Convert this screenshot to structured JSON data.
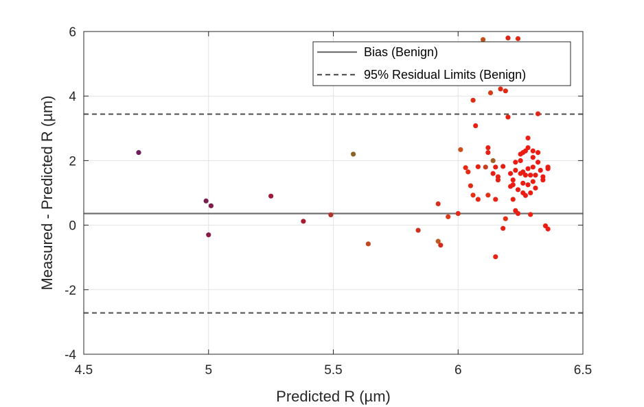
{
  "chart_data": {
    "type": "scatter",
    "title": "",
    "xlabel": "Predicted R (µm)",
    "ylabel": "Measured - Predicted R (µm)",
    "xlim": [
      4.5,
      6.5
    ],
    "ylim": [
      -4,
      6
    ],
    "xticks": [
      4.5,
      5,
      5.5,
      6,
      6.5
    ],
    "yticks": [
      -4,
      -2,
      0,
      2,
      4,
      6
    ],
    "xtick_labels": [
      "4.5",
      "5",
      "5.5",
      "6",
      "6.5"
    ],
    "ytick_labels": [
      "-4",
      "-2",
      "0",
      "2",
      "4",
      "6"
    ],
    "grid": true,
    "legend_position": "top-right",
    "colors": {
      "bias_line": "#707070",
      "limit_line": "#555555",
      "grid": "#e3e3e3",
      "axis": "#262626"
    },
    "lines": [
      {
        "name": "Bias (Benign)",
        "y": 0.36,
        "style": "solid"
      },
      {
        "name": "95% Residual Limits (Benign)",
        "y": [
          3.44,
          -2.72
        ],
        "style": "dashed"
      }
    ],
    "points": [
      {
        "x": 4.72,
        "y": 2.25,
        "color": "#6b1e5c"
      },
      {
        "x": 4.99,
        "y": 0.75,
        "color": "#7a1e50"
      },
      {
        "x": 5.01,
        "y": 0.6,
        "color": "#7f1e4c"
      },
      {
        "x": 5.0,
        "y": -0.3,
        "color": "#841d48"
      },
      {
        "x": 5.25,
        "y": 0.9,
        "color": "#a01a3a"
      },
      {
        "x": 5.38,
        "y": 0.12,
        "color": "#a81a30"
      },
      {
        "x": 5.49,
        "y": 0.32,
        "color": "#b2352a"
      },
      {
        "x": 5.58,
        "y": 2.2,
        "color": "#8a6424"
      },
      {
        "x": 5.64,
        "y": -0.58,
        "color": "#c04a20"
      },
      {
        "x": 5.84,
        "y": -0.16,
        "color": "#d03020"
      },
      {
        "x": 5.92,
        "y": 0.66,
        "color": "#d82d1c"
      },
      {
        "x": 5.92,
        "y": -0.5,
        "color": "#b85a22"
      },
      {
        "x": 5.93,
        "y": -0.62,
        "color": "#d42a1c"
      },
      {
        "x": 5.96,
        "y": 0.26,
        "color": "#dc3a18"
      },
      {
        "x": 6.0,
        "y": 0.36,
        "color": "#e02a18"
      },
      {
        "x": 6.01,
        "y": 2.34,
        "color": "#c8501c"
      },
      {
        "x": 6.03,
        "y": 1.78,
        "color": "#e82814"
      },
      {
        "x": 6.04,
        "y": 1.65,
        "color": "#e62814"
      },
      {
        "x": 6.05,
        "y": 1.22,
        "color": "#e02c14"
      },
      {
        "x": 6.06,
        "y": 3.87,
        "color": "#e02a14"
      },
      {
        "x": 6.06,
        "y": 0.93,
        "color": "#e43014"
      },
      {
        "x": 6.07,
        "y": 3.08,
        "color": "#e82214"
      },
      {
        "x": 6.08,
        "y": 0.8,
        "color": "#e82414"
      },
      {
        "x": 6.08,
        "y": 1.81,
        "color": "#e42214"
      },
      {
        "x": 6.1,
        "y": 5.75,
        "color": "#c0501c"
      },
      {
        "x": 6.11,
        "y": 1.8,
        "color": "#c8401c"
      },
      {
        "x": 6.12,
        "y": 2.4,
        "color": "#e42014"
      },
      {
        "x": 6.12,
        "y": 2.25,
        "color": "#e62014"
      },
      {
        "x": 6.12,
        "y": 0.93,
        "color": "#e43014"
      },
      {
        "x": 6.13,
        "y": 4.1,
        "color": "#d63e18"
      },
      {
        "x": 6.14,
        "y": 1.6,
        "color": "#e82014"
      },
      {
        "x": 6.14,
        "y": 2.0,
        "color": "#a06024"
      },
      {
        "x": 6.15,
        "y": 1.8,
        "color": "#e42014"
      },
      {
        "x": 6.15,
        "y": 0.8,
        "color": "#e82214"
      },
      {
        "x": 6.15,
        "y": -0.98,
        "color": "#e82014"
      },
      {
        "x": 6.16,
        "y": 1.4,
        "color": "#e62014"
      },
      {
        "x": 6.16,
        "y": 1.5,
        "color": "#e62014"
      },
      {
        "x": 6.17,
        "y": 4.22,
        "color": "#dd2a14"
      },
      {
        "x": 6.18,
        "y": -0.1,
        "color": "#e82014"
      },
      {
        "x": 6.18,
        "y": 1.82,
        "color": "#e42014"
      },
      {
        "x": 6.19,
        "y": 0.2,
        "color": "#e43014"
      },
      {
        "x": 6.19,
        "y": 4.16,
        "color": "#e02a14"
      },
      {
        "x": 6.2,
        "y": 5.8,
        "color": "#e02414"
      },
      {
        "x": 6.2,
        "y": 3.35,
        "color": "#e62014"
      },
      {
        "x": 6.21,
        "y": 1.2,
        "color": "#e82014"
      },
      {
        "x": 6.21,
        "y": 1.6,
        "color": "#ea1c14"
      },
      {
        "x": 6.22,
        "y": 1.25,
        "color": "#ea1c14"
      },
      {
        "x": 6.22,
        "y": 0.8,
        "color": "#e82014"
      },
      {
        "x": 6.22,
        "y": 1.4,
        "color": "#ea1c14"
      },
      {
        "x": 6.23,
        "y": 1.7,
        "color": "#ea1c14"
      },
      {
        "x": 6.23,
        "y": 1.95,
        "color": "#ea1c14"
      },
      {
        "x": 6.23,
        "y": 0.45,
        "color": "#e82014"
      },
      {
        "x": 6.24,
        "y": 5.78,
        "color": "#e02a14"
      },
      {
        "x": 6.24,
        "y": 1.1,
        "color": "#ea1c14"
      },
      {
        "x": 6.24,
        "y": 0.36,
        "color": "#e82014"
      },
      {
        "x": 6.25,
        "y": 2.2,
        "color": "#ea1c14"
      },
      {
        "x": 6.25,
        "y": 1.6,
        "color": "#ea1c14"
      },
      {
        "x": 6.25,
        "y": 2.0,
        "color": "#ea1c14"
      },
      {
        "x": 6.26,
        "y": 1.0,
        "color": "#ea1c14"
      },
      {
        "x": 6.26,
        "y": 1.3,
        "color": "#ea1c14"
      },
      {
        "x": 6.26,
        "y": 2.25,
        "color": "#ea1c14"
      },
      {
        "x": 6.26,
        "y": 1.65,
        "color": "#ea1c14"
      },
      {
        "x": 6.27,
        "y": 0.92,
        "color": "#ea1c14"
      },
      {
        "x": 6.27,
        "y": 1.55,
        "color": "#ea1c14"
      },
      {
        "x": 6.27,
        "y": 2.3,
        "color": "#ea1c14"
      },
      {
        "x": 6.28,
        "y": 1.75,
        "color": "#ea1c14"
      },
      {
        "x": 6.28,
        "y": 1.25,
        "color": "#ea1c14"
      },
      {
        "x": 6.28,
        "y": 2.4,
        "color": "#ea1c14"
      },
      {
        "x": 6.28,
        "y": 2.7,
        "color": "#e82014"
      },
      {
        "x": 6.29,
        "y": 1.0,
        "color": "#ea1c14"
      },
      {
        "x": 6.29,
        "y": 0.33,
        "color": "#e42414"
      },
      {
        "x": 6.29,
        "y": 1.55,
        "color": "#ea1c14"
      },
      {
        "x": 6.3,
        "y": 1.35,
        "color": "#ea1c14"
      },
      {
        "x": 6.3,
        "y": 2.1,
        "color": "#ea1c14"
      },
      {
        "x": 6.3,
        "y": 2.3,
        "color": "#ea1c14"
      },
      {
        "x": 6.3,
        "y": 1.8,
        "color": "#ea1c14"
      },
      {
        "x": 6.31,
        "y": 1.55,
        "color": "#ea1c14"
      },
      {
        "x": 6.31,
        "y": 1.15,
        "color": "#ea1c14"
      },
      {
        "x": 6.32,
        "y": 2.25,
        "color": "#ea1c14"
      },
      {
        "x": 6.32,
        "y": 1.95,
        "color": "#ea1c14"
      },
      {
        "x": 6.32,
        "y": 3.45,
        "color": "#e22414"
      },
      {
        "x": 6.33,
        "y": 1.7,
        "color": "#ea1c14"
      },
      {
        "x": 6.34,
        "y": 1.5,
        "color": "#ea1c14"
      },
      {
        "x": 6.34,
        "y": 1.4,
        "color": "#ea1c14"
      },
      {
        "x": 6.35,
        "y": -0.02,
        "color": "#ea1c14"
      },
      {
        "x": 6.36,
        "y": 1.8,
        "color": "#ea1c14"
      },
      {
        "x": 6.36,
        "y": 1.75,
        "color": "#ea1c14"
      },
      {
        "x": 6.36,
        "y": -0.12,
        "color": "#ea1c14"
      }
    ]
  }
}
